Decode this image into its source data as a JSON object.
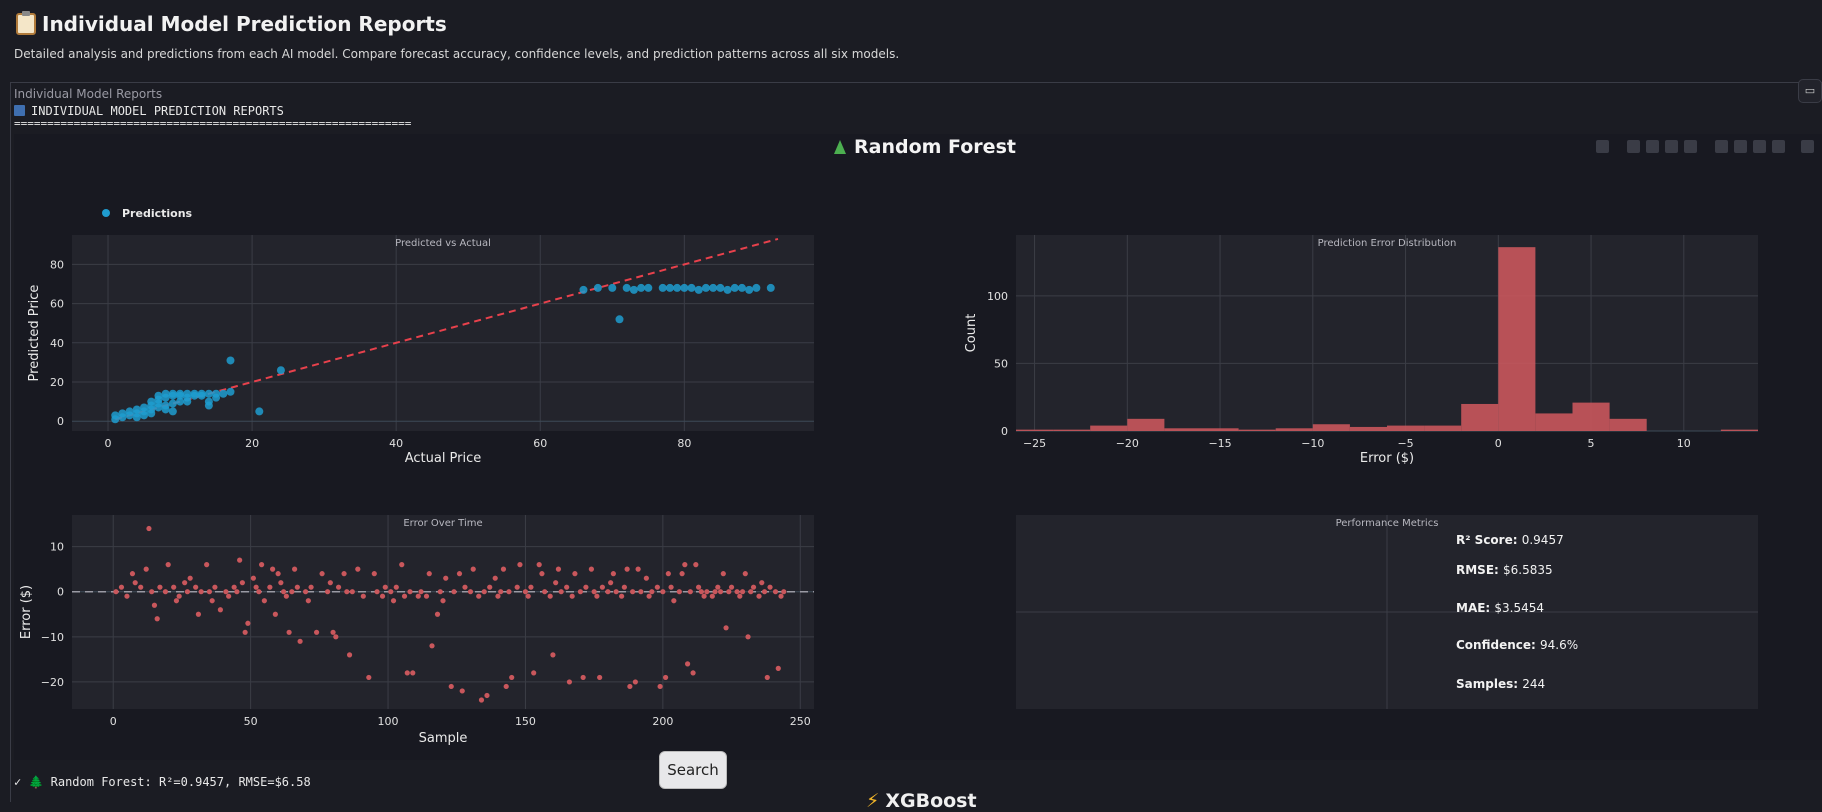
{
  "header": {
    "title": "Individual Model Prediction Reports",
    "subtitle": "Detailed analysis and predictions from each AI model. Compare forecast accuracy, confidence levels, and prediction patterns across all six models."
  },
  "output_panel": {
    "label": "Individual Model Reports",
    "console_title": "INDIVIDUAL MODEL PREDICTION REPORTS",
    "separator": "============================================================",
    "status_line": "✓ 🌲 Random Forest: R²=0.9457, RMSE=$6.58",
    "next_model_title": "XGBoost"
  },
  "model": {
    "name": "Random Forest"
  },
  "search_button": {
    "label": "Search"
  },
  "colors": {
    "scatter": "#1f9ccf",
    "ideal_line": "#e8414c",
    "hist": "#c9575c",
    "err_points": "#c9575c"
  },
  "toolbar_icons": [
    "camera-icon",
    "zoom-icon",
    "pan-icon",
    "box-select-icon",
    "lasso-icon",
    "zoom-in-icon",
    "zoom-out-icon",
    "autoscale-icon",
    "home-icon",
    "plotly-logo-icon"
  ],
  "chart_data": [
    {
      "type": "scatter",
      "title": "Predicted vs Actual",
      "xlabel": "Actual Price",
      "ylabel": "Predicted Price",
      "xlim": [
        -5,
        98
      ],
      "ylim": [
        -5,
        95
      ],
      "xticks": [
        "0",
        "20",
        "40",
        "60",
        "80"
      ],
      "yticks": [
        "0",
        "20",
        "40",
        "60",
        "80"
      ],
      "legend": "Predictions",
      "grid": true,
      "ideal_line": {
        "x": [
          1,
          93
        ],
        "y": [
          1,
          93
        ]
      },
      "points": [
        [
          1,
          1
        ],
        [
          1,
          3
        ],
        [
          2,
          2
        ],
        [
          2,
          4
        ],
        [
          3,
          3
        ],
        [
          3,
          5
        ],
        [
          4,
          4
        ],
        [
          4,
          6
        ],
        [
          4,
          2
        ],
        [
          5,
          5
        ],
        [
          5,
          7
        ],
        [
          5,
          3
        ],
        [
          6,
          6
        ],
        [
          6,
          8
        ],
        [
          6,
          10
        ],
        [
          6,
          4
        ],
        [
          7,
          7
        ],
        [
          7,
          9
        ],
        [
          7,
          11
        ],
        [
          7,
          13
        ],
        [
          8,
          8
        ],
        [
          8,
          12
        ],
        [
          8,
          14
        ],
        [
          8,
          6
        ],
        [
          9,
          9
        ],
        [
          9,
          13
        ],
        [
          9,
          14
        ],
        [
          9,
          5
        ],
        [
          10,
          10
        ],
        [
          10,
          13
        ],
        [
          10,
          14
        ],
        [
          11,
          14
        ],
        [
          11,
          12
        ],
        [
          11,
          10
        ],
        [
          12,
          14
        ],
        [
          12,
          13
        ],
        [
          13,
          14
        ],
        [
          13,
          13
        ],
        [
          14,
          14
        ],
        [
          14,
          10
        ],
        [
          14,
          8
        ],
        [
          15,
          14
        ],
        [
          15,
          12
        ],
        [
          16,
          14
        ],
        [
          17,
          31
        ],
        [
          17,
          15
        ],
        [
          21,
          5
        ],
        [
          24,
          26
        ],
        [
          66,
          67
        ],
        [
          68,
          68
        ],
        [
          70,
          68
        ],
        [
          71,
          52
        ],
        [
          72,
          68
        ],
        [
          73,
          67
        ],
        [
          74,
          68
        ],
        [
          75,
          68
        ],
        [
          77,
          68
        ],
        [
          78,
          68
        ],
        [
          79,
          68
        ],
        [
          80,
          68
        ],
        [
          81,
          68
        ],
        [
          82,
          67
        ],
        [
          83,
          68
        ],
        [
          84,
          68
        ],
        [
          85,
          68
        ],
        [
          86,
          67
        ],
        [
          87,
          68
        ],
        [
          88,
          68
        ],
        [
          89,
          67
        ],
        [
          90,
          68
        ],
        [
          92,
          68
        ]
      ]
    },
    {
      "type": "bar",
      "title": "Prediction Error Distribution",
      "xlabel": "Error ($)",
      "ylabel": "Count",
      "xlim": [
        -26,
        14
      ],
      "ylim": [
        0,
        145
      ],
      "xticks": [
        "−25",
        "−20",
        "−15",
        "−10",
        "−5",
        "0",
        "5",
        "10"
      ],
      "yticks": [
        "0",
        "50",
        "100"
      ],
      "bin_width": 2,
      "bins": [
        {
          "x0": -26,
          "count": 1
        },
        {
          "x0": -24,
          "count": 1
        },
        {
          "x0": -22,
          "count": 4
        },
        {
          "x0": -20,
          "count": 9
        },
        {
          "x0": -18,
          "count": 2
        },
        {
          "x0": -16,
          "count": 2
        },
        {
          "x0": -14,
          "count": 1
        },
        {
          "x0": -12,
          "count": 2
        },
        {
          "x0": -10,
          "count": 5
        },
        {
          "x0": -8,
          "count": 3
        },
        {
          "x0": -6,
          "count": 4
        },
        {
          "x0": -4,
          "count": 4
        },
        {
          "x0": -2,
          "count": 20
        },
        {
          "x0": 0,
          "count": 136
        },
        {
          "x0": 2,
          "count": 13
        },
        {
          "x0": 4,
          "count": 21
        },
        {
          "x0": 6,
          "count": 9
        },
        {
          "x0": 12,
          "count": 1
        }
      ]
    },
    {
      "type": "scatter",
      "title": "Error Over Time",
      "xlabel": "Sample",
      "ylabel": "Error ($)",
      "xlim": [
        -15,
        255
      ],
      "ylim": [
        -26,
        17
      ],
      "xticks": [
        "0",
        "50",
        "100",
        "150",
        "200",
        "250"
      ],
      "yticks": [
        "−20",
        "−10",
        "0",
        "10"
      ],
      "zero_line": true,
      "points": [
        [
          1,
          0
        ],
        [
          3,
          1
        ],
        [
          5,
          -1
        ],
        [
          7,
          4
        ],
        [
          8,
          2
        ],
        [
          10,
          1
        ],
        [
          12,
          5
        ],
        [
          13,
          14
        ],
        [
          14,
          0
        ],
        [
          15,
          -3
        ],
        [
          16,
          -6
        ],
        [
          17,
          1
        ],
        [
          19,
          0
        ],
        [
          20,
          6
        ],
        [
          22,
          1
        ],
        [
          23,
          -2
        ],
        [
          24,
          -1
        ],
        [
          26,
          2
        ],
        [
          27,
          0
        ],
        [
          28,
          3
        ],
        [
          30,
          1
        ],
        [
          31,
          -5
        ],
        [
          32,
          0
        ],
        [
          34,
          6
        ],
        [
          35,
          0
        ],
        [
          36,
          -2
        ],
        [
          37,
          1
        ],
        [
          39,
          -4
        ],
        [
          41,
          0
        ],
        [
          42,
          -1
        ],
        [
          44,
          1
        ],
        [
          45,
          0
        ],
        [
          46,
          7
        ],
        [
          47,
          2
        ],
        [
          48,
          -9
        ],
        [
          49,
          -7
        ],
        [
          51,
          3
        ],
        [
          52,
          1
        ],
        [
          53,
          0
        ],
        [
          54,
          6
        ],
        [
          55,
          -2
        ],
        [
          57,
          1
        ],
        [
          58,
          5
        ],
        [
          59,
          -5
        ],
        [
          60,
          4
        ],
        [
          61,
          2
        ],
        [
          62,
          0
        ],
        [
          63,
          -1
        ],
        [
          64,
          -9
        ],
        [
          65,
          0
        ],
        [
          66,
          5
        ],
        [
          67,
          1
        ],
        [
          68,
          -11
        ],
        [
          70,
          0
        ],
        [
          71,
          -2
        ],
        [
          72,
          1
        ],
        [
          74,
          -9
        ],
        [
          76,
          4
        ],
        [
          78,
          0
        ],
        [
          79,
          2
        ],
        [
          80,
          -9
        ],
        [
          81,
          -10
        ],
        [
          82,
          1
        ],
        [
          84,
          4
        ],
        [
          85,
          0
        ],
        [
          86,
          -14
        ],
        [
          87,
          0
        ],
        [
          89,
          5
        ],
        [
          91,
          -1
        ],
        [
          93,
          -19
        ],
        [
          95,
          4
        ],
        [
          96,
          0
        ],
        [
          98,
          -1
        ],
        [
          99,
          1
        ],
        [
          101,
          0
        ],
        [
          102,
          -2
        ],
        [
          103,
          1
        ],
        [
          105,
          6
        ],
        [
          106,
          -1
        ],
        [
          107,
          -18
        ],
        [
          108,
          0
        ],
        [
          109,
          -18
        ],
        [
          111,
          -1
        ],
        [
          112,
          0
        ],
        [
          114,
          -1
        ],
        [
          115,
          4
        ],
        [
          116,
          -12
        ],
        [
          118,
          -5
        ],
        [
          119,
          0
        ],
        [
          120,
          -2
        ],
        [
          121,
          3
        ],
        [
          123,
          -21
        ],
        [
          124,
          0
        ],
        [
          126,
          4
        ],
        [
          127,
          -22
        ],
        [
          128,
          1
        ],
        [
          130,
          0
        ],
        [
          131,
          5
        ],
        [
          133,
          -1
        ],
        [
          134,
          -24
        ],
        [
          135,
          0
        ],
        [
          136,
          -23
        ],
        [
          137,
          1
        ],
        [
          139,
          3
        ],
        [
          140,
          -1
        ],
        [
          141,
          0
        ],
        [
          142,
          5
        ],
        [
          143,
          -21
        ],
        [
          144,
          0
        ],
        [
          145,
          -19
        ],
        [
          147,
          1
        ],
        [
          148,
          6
        ],
        [
          150,
          0
        ],
        [
          151,
          -1
        ],
        [
          152,
          1
        ],
        [
          153,
          -18
        ],
        [
          155,
          6
        ],
        [
          156,
          4
        ],
        [
          157,
          0
        ],
        [
          159,
          -1
        ],
        [
          160,
          -14
        ],
        [
          161,
          2
        ],
        [
          162,
          5
        ],
        [
          163,
          0
        ],
        [
          165,
          1
        ],
        [
          166,
          -20
        ],
        [
          167,
          -1
        ],
        [
          168,
          4
        ],
        [
          170,
          0
        ],
        [
          171,
          -19
        ],
        [
          172,
          1
        ],
        [
          174,
          5
        ],
        [
          175,
          0
        ],
        [
          176,
          -1
        ],
        [
          177,
          -19
        ],
        [
          178,
          1
        ],
        [
          180,
          0
        ],
        [
          181,
          2
        ],
        [
          182,
          4
        ],
        [
          183,
          0
        ],
        [
          185,
          -1
        ],
        [
          186,
          1
        ],
        [
          187,
          5
        ],
        [
          188,
          -21
        ],
        [
          189,
          0
        ],
        [
          190,
          -20
        ],
        [
          191,
          5
        ],
        [
          192,
          0
        ],
        [
          194,
          3
        ],
        [
          195,
          -1
        ],
        [
          196,
          0
        ],
        [
          198,
          1
        ],
        [
          199,
          -21
        ],
        [
          200,
          0
        ],
        [
          201,
          -19
        ],
        [
          202,
          4
        ],
        [
          203,
          1
        ],
        [
          204,
          -2
        ],
        [
          206,
          0
        ],
        [
          207,
          4
        ],
        [
          208,
          6
        ],
        [
          209,
          -16
        ],
        [
          210,
          0
        ],
        [
          211,
          -18
        ],
        [
          212,
          6
        ],
        [
          213,
          1
        ],
        [
          214,
          0
        ],
        [
          215,
          -1
        ],
        [
          216,
          0
        ],
        [
          218,
          -1
        ],
        [
          219,
          0
        ],
        [
          220,
          1
        ],
        [
          221,
          0
        ],
        [
          222,
          4
        ],
        [
          223,
          -8
        ],
        [
          224,
          0
        ],
        [
          225,
          1
        ],
        [
          227,
          0
        ],
        [
          228,
          -1
        ],
        [
          229,
          0
        ],
        [
          230,
          4
        ],
        [
          231,
          -10
        ],
        [
          232,
          0
        ],
        [
          233,
          1
        ],
        [
          235,
          -1
        ],
        [
          236,
          2
        ],
        [
          237,
          0
        ],
        [
          238,
          -19
        ],
        [
          239,
          1
        ],
        [
          241,
          0
        ],
        [
          242,
          -17
        ],
        [
          243,
          -1
        ],
        [
          244,
          0
        ]
      ]
    },
    {
      "type": "table",
      "title": "Performance Metrics",
      "metrics": [
        {
          "label": "R² Score:",
          "value": "0.9457"
        },
        {
          "label": "RMSE:",
          "value": "$6.5835"
        },
        {
          "label": "MAE:",
          "value": "$3.5454"
        },
        {
          "label": "Confidence:",
          "value": "94.6%"
        },
        {
          "label": "Samples:",
          "value": "244"
        }
      ]
    }
  ]
}
